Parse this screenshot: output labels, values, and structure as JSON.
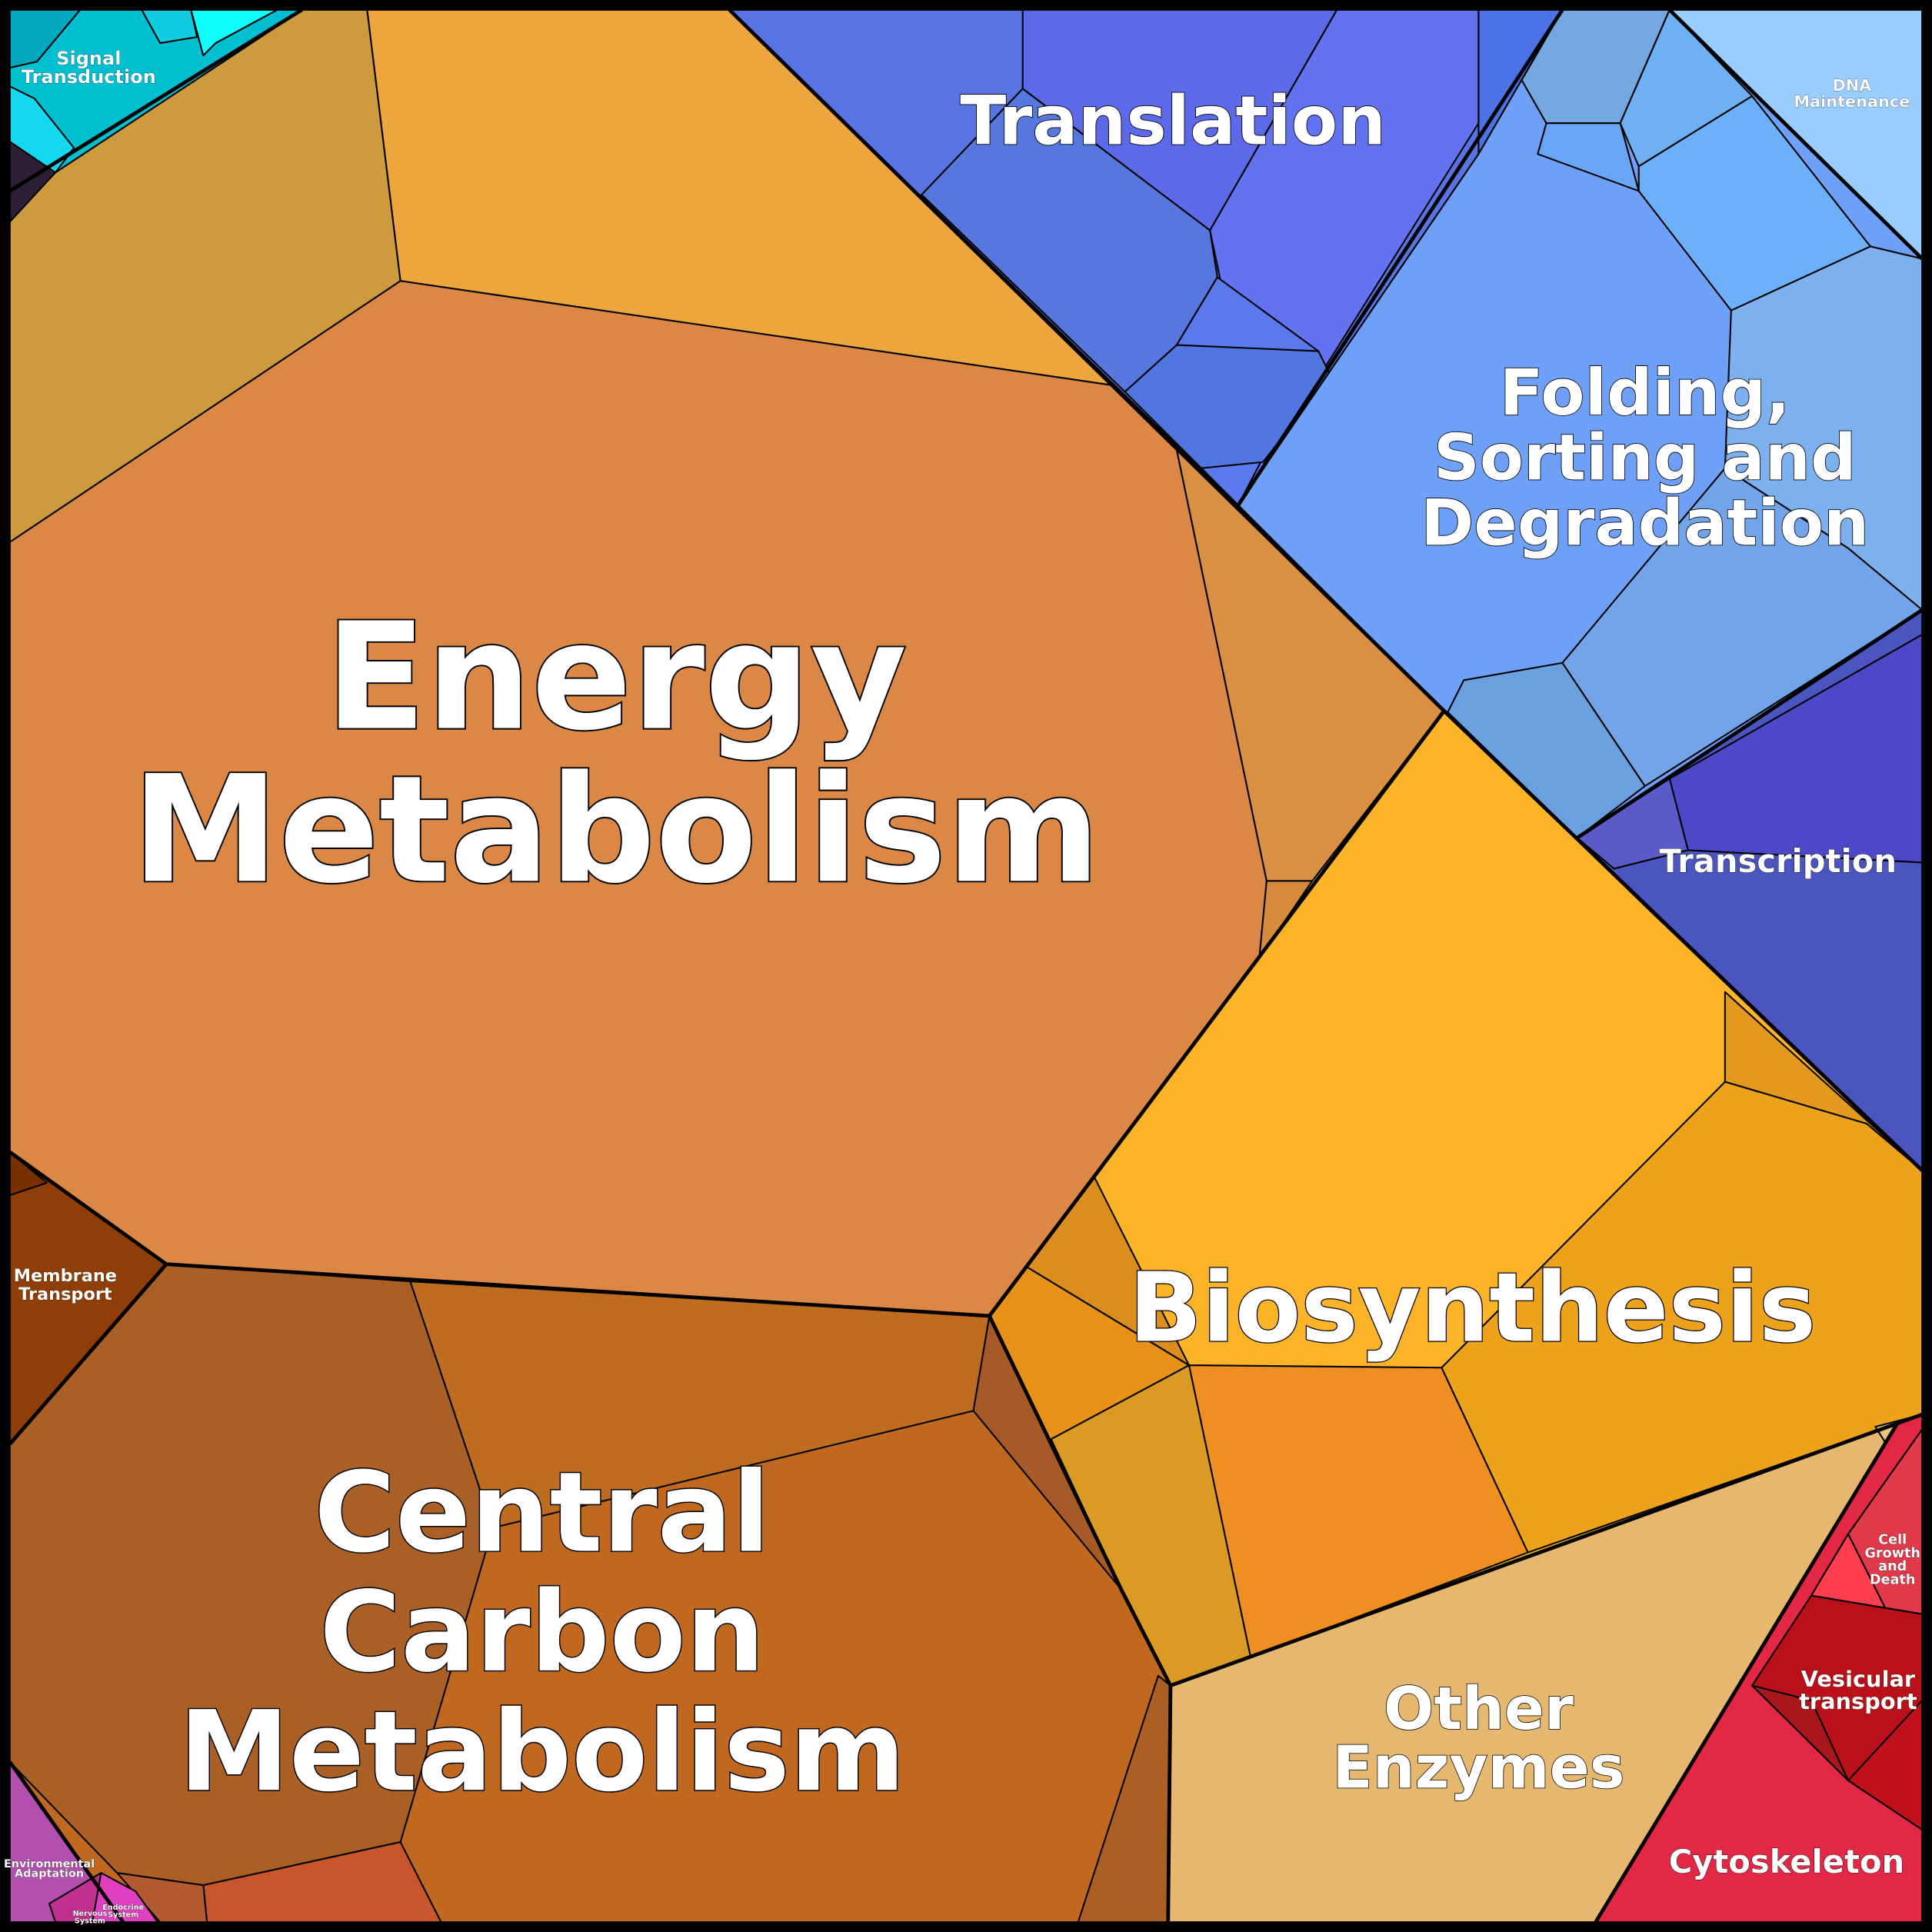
{
  "regions": [
    {
      "label": [
        "Energy",
        "Metabolism"
      ]
    },
    {
      "label": [
        "Central",
        "Carbon",
        "Metabolism"
      ]
    },
    {
      "label": [
        "Biosynthesis"
      ]
    },
    {
      "label": [
        "Translation"
      ]
    },
    {
      "label": [
        "Folding,",
        "Sorting and",
        "Degradation"
      ]
    },
    {
      "label": [
        "Other",
        "Enzymes"
      ]
    },
    {
      "label": [
        "Transcription"
      ]
    },
    {
      "label": [
        "Cytoskeleton"
      ]
    },
    {
      "label": [
        "Vesicular",
        "transport"
      ]
    },
    {
      "label": [
        "Cell",
        "Growth",
        "and",
        "Death"
      ]
    },
    {
      "label": [
        "Membrane",
        "Transport"
      ]
    },
    {
      "label": [
        "Signal",
        "Transduction"
      ]
    },
    {
      "label": [
        "DNA",
        "Maintenance"
      ]
    },
    {
      "label": [
        "Environmental",
        "Adaptation"
      ]
    },
    {
      "label": [
        "Nervous",
        "System"
      ]
    },
    {
      "label": [
        "Endocrine",
        "System"
      ]
    }
  ]
}
